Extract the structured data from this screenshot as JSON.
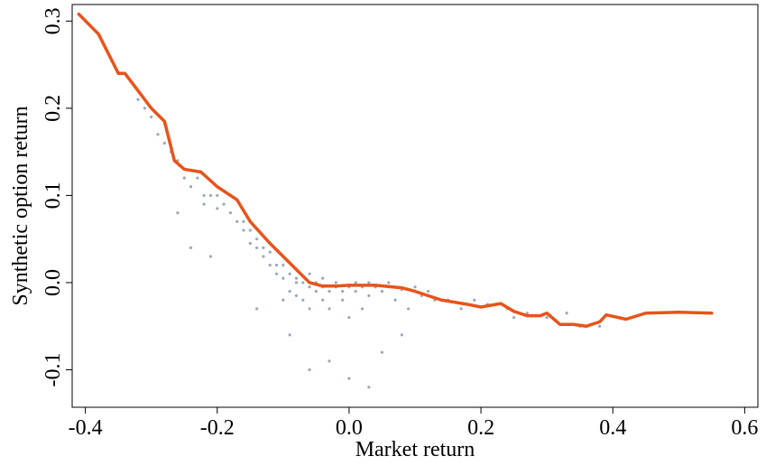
{
  "chart_data": {
    "type": "scatter",
    "x_label": "Market return",
    "y_label": "Synthetic option return",
    "xlim": [
      -0.42,
      0.62
    ],
    "ylim": [
      -0.143,
      0.319
    ],
    "xticks": [
      -0.4,
      -0.2,
      {
        "value": 0,
        "label": "0.0"
      },
      0.2,
      0.4,
      0.6
    ],
    "yticks": [
      -0.1,
      {
        "value": 0,
        "label": "0.0"
      },
      0.1,
      0.2,
      0.3
    ],
    "series": [
      {
        "type": "scatter",
        "color": "#1f3f66",
        "x": [
          -0.34,
          -0.32,
          -0.31,
          -0.3,
          -0.29,
          -0.28,
          -0.27,
          -0.26,
          -0.25,
          -0.24,
          -0.23,
          -0.22,
          -0.22,
          -0.21,
          -0.2,
          -0.2,
          -0.19,
          -0.18,
          -0.18,
          -0.17,
          -0.16,
          -0.16,
          -0.15,
          -0.15,
          -0.14,
          -0.14,
          -0.13,
          -0.13,
          -0.12,
          -0.12,
          -0.11,
          -0.11,
          -0.1,
          -0.1,
          -0.1,
          -0.09,
          -0.09,
          -0.08,
          -0.08,
          -0.08,
          -0.07,
          -0.07,
          -0.06,
          -0.06,
          -0.06,
          -0.05,
          -0.05,
          -0.04,
          -0.04,
          -0.04,
          -0.03,
          -0.03,
          -0.02,
          -0.02,
          -0.01,
          -0.01,
          0,
          0,
          0.01,
          0.01,
          0.02,
          0.02,
          0.03,
          0.03,
          0.04,
          0.05,
          0.06,
          0.07,
          0.08,
          0.09,
          0.1,
          0.11,
          0.12,
          0.13,
          0.15,
          0.17,
          0.19,
          0.21,
          0.24,
          0.27,
          0.3,
          0.33,
          0.38,
          -0.26,
          -0.24,
          -0.21,
          -0.14,
          -0.09,
          -0.06,
          -0.03,
          0,
          0.03,
          0.05,
          0.08,
          0.25,
          0.35
        ],
        "values": [
          0.24,
          0.21,
          0.2,
          0.19,
          0.17,
          0.16,
          0.15,
          0.14,
          0.12,
          0.11,
          0.12,
          0.09,
          0.1,
          0.1,
          0.1,
          0.085,
          0.09,
          0.08,
          0.1,
          0.07,
          0.07,
          0.06,
          0.06,
          0.045,
          0.05,
          0.04,
          0.04,
          0.03,
          0.035,
          0.02,
          0.02,
          0.01,
          0.02,
          0.005,
          -0.02,
          0.01,
          -0.01,
          0.005,
          -0.015,
          0,
          0,
          -0.02,
          -0.005,
          0.01,
          -0.03,
          -0.01,
          0,
          -0.005,
          -0.02,
          0.005,
          -0.01,
          -0.03,
          -0.005,
          0,
          -0.01,
          -0.02,
          -0.005,
          -0.04,
          -0.01,
          0,
          -0.005,
          -0.03,
          0,
          -0.015,
          -0.005,
          -0.01,
          0,
          -0.02,
          -0.008,
          -0.03,
          -0.005,
          -0.015,
          -0.01,
          -0.02,
          -0.02,
          -0.03,
          -0.02,
          -0.025,
          -0.03,
          -0.035,
          -0.04,
          -0.035,
          -0.05,
          0.08,
          0.04,
          0.03,
          -0.03,
          -0.06,
          -0.1,
          -0.09,
          -0.11,
          -0.12,
          -0.08,
          -0.06,
          -0.04,
          -0.05
        ]
      },
      {
        "type": "line",
        "color": "#e8531a",
        "x": [
          -0.41,
          -0.38,
          -0.35,
          -0.34,
          -0.32,
          -0.3,
          -0.28,
          -0.265,
          -0.25,
          -0.225,
          -0.2,
          -0.17,
          -0.15,
          -0.12,
          -0.1,
          -0.08,
          -0.06,
          -0.04,
          -0.02,
          0,
          0.04,
          0.08,
          0.1,
          0.14,
          0.18,
          0.2,
          0.23,
          0.25,
          0.27,
          0.29,
          0.3,
          0.32,
          0.34,
          0.36,
          0.38,
          0.39,
          0.42,
          0.45,
          0.5,
          0.55
        ],
        "values": [
          0.308,
          0.285,
          0.24,
          0.24,
          0.22,
          0.2,
          0.185,
          0.14,
          0.13,
          0.127,
          0.11,
          0.095,
          0.07,
          0.045,
          0.03,
          0.015,
          0,
          -0.004,
          -0.004,
          -0.003,
          -0.003,
          -0.006,
          -0.01,
          -0.02,
          -0.025,
          -0.028,
          -0.024,
          -0.033,
          -0.038,
          -0.038,
          -0.035,
          -0.048,
          -0.048,
          -0.05,
          -0.045,
          -0.037,
          -0.042,
          -0.035,
          -0.034,
          -0.035
        ]
      }
    ]
  }
}
